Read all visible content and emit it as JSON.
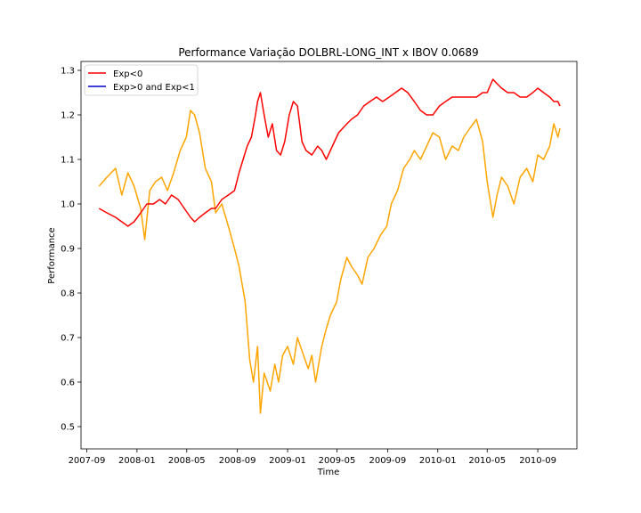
{
  "chart_data": {
    "type": "line",
    "title": "Performance Variação DOLBRL-LONG_INT x IBOV 0.0689",
    "xlabel": "Time",
    "ylabel": "Performance",
    "ylim": [
      0.45,
      1.32
    ],
    "xlim": [
      "2007-08-18",
      "2010-12-05"
    ],
    "y_ticks": [
      0.5,
      0.6,
      0.7,
      0.8,
      0.9,
      1.0,
      1.1,
      1.2,
      1.3
    ],
    "x_ticks": [
      "2007-09",
      "2008-01",
      "2008-05",
      "2008-09",
      "2009-01",
      "2009-05",
      "2009-09",
      "2010-01",
      "2010-05",
      "2010-09"
    ],
    "grid": false,
    "legend_position": "top-left",
    "legend": [
      {
        "label": "Exp<0",
        "color": "#ff0000"
      },
      {
        "label": "Exp>0 and Exp<1",
        "color": "#0000cc"
      }
    ],
    "series": [
      {
        "color": "#ffa500",
        "x": [
          "2007-10-01",
          "2007-10-20",
          "2007-11-10",
          "2007-11-25",
          "2007-12-10",
          "2007-12-25",
          "2008-01-10",
          "2008-01-20",
          "2008-02-01",
          "2008-02-15",
          "2008-03-01",
          "2008-03-15",
          "2008-03-30",
          "2008-04-15",
          "2008-04-30",
          "2008-05-10",
          "2008-05-20",
          "2008-06-01",
          "2008-06-15",
          "2008-06-30",
          "2008-07-10",
          "2008-07-25",
          "2008-08-10",
          "2008-08-25",
          "2008-09-05",
          "2008-09-20",
          "2008-10-01",
          "2008-10-10",
          "2008-10-20",
          "2008-10-27",
          "2008-11-05",
          "2008-11-20",
          "2008-12-01",
          "2008-12-10",
          "2008-12-20",
          "2009-01-01",
          "2009-01-15",
          "2009-01-25",
          "2009-02-05",
          "2009-02-20",
          "2009-03-01",
          "2009-03-10",
          "2009-03-25",
          "2009-04-05",
          "2009-04-15",
          "2009-04-30",
          "2009-05-10",
          "2009-05-25",
          "2009-06-05",
          "2009-06-20",
          "2009-07-01",
          "2009-07-15",
          "2009-07-30",
          "2009-08-15",
          "2009-08-30",
          "2009-09-10",
          "2009-09-25",
          "2009-10-10",
          "2009-10-25",
          "2009-11-05",
          "2009-11-20",
          "2009-12-05",
          "2009-12-20",
          "2010-01-05",
          "2010-01-20",
          "2010-02-05",
          "2010-02-20",
          "2010-03-05",
          "2010-03-20",
          "2010-04-05",
          "2010-04-20",
          "2010-05-01",
          "2010-05-15",
          "2010-05-25",
          "2010-06-05",
          "2010-06-20",
          "2010-07-05",
          "2010-07-20",
          "2010-08-05",
          "2010-08-20",
          "2010-09-01",
          "2010-09-15",
          "2010-09-30",
          "2010-10-10",
          "2010-10-20",
          "2010-10-25"
        ],
        "values": [
          1.04,
          1.06,
          1.08,
          1.02,
          1.07,
          1.04,
          0.99,
          0.92,
          1.03,
          1.05,
          1.06,
          1.03,
          1.07,
          1.12,
          1.15,
          1.21,
          1.2,
          1.16,
          1.08,
          1.05,
          0.98,
          1.0,
          0.95,
          0.9,
          0.86,
          0.78,
          0.65,
          0.6,
          0.68,
          0.53,
          0.62,
          0.58,
          0.64,
          0.6,
          0.66,
          0.68,
          0.64,
          0.7,
          0.67,
          0.63,
          0.66,
          0.6,
          0.68,
          0.72,
          0.75,
          0.78,
          0.83,
          0.88,
          0.86,
          0.84,
          0.82,
          0.88,
          0.9,
          0.93,
          0.95,
          1.0,
          1.03,
          1.08,
          1.1,
          1.12,
          1.1,
          1.13,
          1.16,
          1.15,
          1.1,
          1.13,
          1.12,
          1.15,
          1.17,
          1.19,
          1.14,
          1.05,
          0.97,
          1.02,
          1.06,
          1.04,
          1.0,
          1.06,
          1.08,
          1.05,
          1.11,
          1.1,
          1.13,
          1.18,
          1.15,
          1.17
        ]
      },
      {
        "color": "#ff0000",
        "x": [
          "2007-10-01",
          "2007-10-20",
          "2007-11-10",
          "2007-11-25",
          "2007-12-10",
          "2007-12-25",
          "2008-01-10",
          "2008-01-25",
          "2008-02-10",
          "2008-02-25",
          "2008-03-10",
          "2008-03-25",
          "2008-04-10",
          "2008-04-25",
          "2008-05-10",
          "2008-05-20",
          "2008-06-01",
          "2008-06-15",
          "2008-06-30",
          "2008-07-10",
          "2008-07-25",
          "2008-08-10",
          "2008-08-25",
          "2008-09-05",
          "2008-09-15",
          "2008-09-25",
          "2008-10-05",
          "2008-10-15",
          "2008-10-20",
          "2008-10-27",
          "2008-11-05",
          "2008-11-15",
          "2008-11-25",
          "2008-12-05",
          "2008-12-15",
          "2008-12-25",
          "2009-01-05",
          "2009-01-15",
          "2009-01-25",
          "2009-02-05",
          "2009-02-15",
          "2009-03-01",
          "2009-03-15",
          "2009-03-25",
          "2009-04-05",
          "2009-04-15",
          "2009-04-25",
          "2009-05-05",
          "2009-05-15",
          "2009-05-25",
          "2009-06-05",
          "2009-06-20",
          "2009-07-05",
          "2009-07-20",
          "2009-08-05",
          "2009-08-20",
          "2009-09-05",
          "2009-09-20",
          "2009-10-05",
          "2009-10-20",
          "2009-11-05",
          "2009-11-20",
          "2009-12-05",
          "2009-12-20",
          "2010-01-05",
          "2010-01-20",
          "2010-02-05",
          "2010-02-20",
          "2010-03-05",
          "2010-03-20",
          "2010-04-05",
          "2010-04-20",
          "2010-05-01",
          "2010-05-15",
          "2010-05-25",
          "2010-06-05",
          "2010-06-20",
          "2010-07-05",
          "2010-07-20",
          "2010-08-05",
          "2010-08-20",
          "2010-09-01",
          "2010-09-15",
          "2010-09-30",
          "2010-10-10",
          "2010-10-20",
          "2010-10-25"
        ],
        "values": [
          0.99,
          0.98,
          0.97,
          0.96,
          0.95,
          0.96,
          0.98,
          1.0,
          1.0,
          1.01,
          1.0,
          1.02,
          1.01,
          0.99,
          0.97,
          0.96,
          0.97,
          0.98,
          0.99,
          0.99,
          1.01,
          1.02,
          1.03,
          1.07,
          1.1,
          1.13,
          1.15,
          1.2,
          1.23,
          1.25,
          1.2,
          1.15,
          1.18,
          1.12,
          1.11,
          1.14,
          1.2,
          1.23,
          1.22,
          1.14,
          1.12,
          1.11,
          1.13,
          1.12,
          1.1,
          1.12,
          1.14,
          1.16,
          1.17,
          1.18,
          1.19,
          1.2,
          1.22,
          1.23,
          1.24,
          1.23,
          1.24,
          1.25,
          1.26,
          1.25,
          1.23,
          1.21,
          1.2,
          1.2,
          1.22,
          1.23,
          1.24,
          1.24,
          1.24,
          1.24,
          1.24,
          1.25,
          1.25,
          1.28,
          1.27,
          1.26,
          1.25,
          1.25,
          1.24,
          1.24,
          1.25,
          1.26,
          1.25,
          1.24,
          1.23,
          1.23,
          1.22
        ]
      }
    ]
  }
}
